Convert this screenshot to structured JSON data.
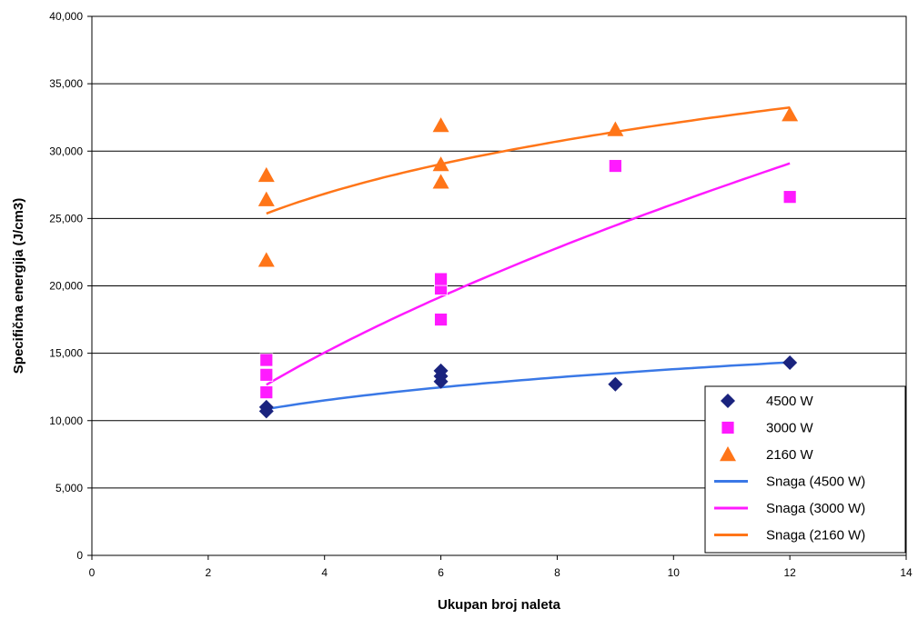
{
  "chart_data": {
    "type": "scatter",
    "xlabel": "Ukupan broj naleta",
    "ylabel": "Specifična energija (J/cm3)",
    "xlim": [
      0,
      14
    ],
    "ylim": [
      0,
      40000
    ],
    "x_ticks": [
      "0",
      "2",
      "4",
      "6",
      "8",
      "10",
      "12",
      "14"
    ],
    "y_ticks": [
      "0",
      "5,000",
      "10,000",
      "15,000",
      "20,000",
      "25,000",
      "30,000",
      "35,000",
      "40,000"
    ],
    "grid": "horizontal",
    "legend_position": "bottom-right",
    "series": [
      {
        "name": "4500 W",
        "marker": "diamond",
        "color": "#1a237e",
        "points": [
          [
            3,
            10700
          ],
          [
            3,
            11000
          ],
          [
            6,
            12900
          ],
          [
            6,
            13300
          ],
          [
            6,
            13700
          ],
          [
            9,
            12700
          ],
          [
            12,
            14300
          ]
        ]
      },
      {
        "name": "3000 W",
        "marker": "square",
        "color": "#ff1aff",
        "points": [
          [
            3,
            12100
          ],
          [
            3,
            13400
          ],
          [
            3,
            14500
          ],
          [
            6,
            17500
          ],
          [
            6,
            19800
          ],
          [
            6,
            20500
          ],
          [
            9,
            28900
          ],
          [
            12,
            26600
          ]
        ]
      },
      {
        "name": "2160 W",
        "marker": "triangle",
        "color": "#ff7518",
        "points": [
          [
            3,
            21900
          ],
          [
            3,
            26400
          ],
          [
            3,
            28200
          ],
          [
            6,
            27700
          ],
          [
            6,
            29000
          ],
          [
            6,
            31900
          ],
          [
            9,
            31600
          ],
          [
            12,
            32700
          ]
        ]
      }
    ],
    "trendlines": [
      {
        "name": "Snaga (4500 W)",
        "color": "#3a78e6",
        "type": "power",
        "a": 8715,
        "b": 0.2,
        "x_range": [
          3,
          12
        ]
      },
      {
        "name": "Snaga (3000 W)",
        "color": "#ff1aff",
        "type": "power",
        "a": 6550,
        "b": 0.6,
        "x_range": [
          3,
          12
        ]
      },
      {
        "name": "Snaga (2160 W)",
        "color": "#ff7518",
        "type": "power",
        "a": 20475,
        "b": 0.195,
        "x_range": [
          3,
          12
        ]
      }
    ]
  }
}
